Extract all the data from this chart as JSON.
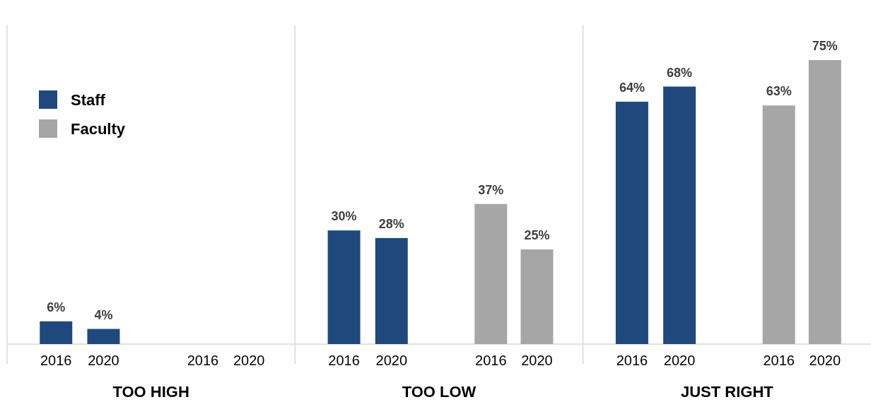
{
  "chart_data": {
    "type": "bar",
    "categories": [
      "2016",
      "2020",
      "2016",
      "2020",
      "2016",
      "2020",
      "2016",
      "2020",
      "2016",
      "2020",
      "2016",
      "2020"
    ],
    "series": [
      {
        "name": "Staff",
        "color": "#1f497d",
        "values": [
          6,
          4,
          null,
          null,
          30,
          28,
          null,
          null,
          64,
          68,
          null,
          null
        ],
        "value_labels": [
          "6%",
          "4%",
          null,
          null,
          "30%",
          "28%",
          null,
          null,
          "64%",
          "68%",
          null,
          null
        ]
      },
      {
        "name": "Faculty",
        "color": "#a6a6a6",
        "values": [
          null,
          null,
          null,
          null,
          null,
          null,
          37,
          25,
          null,
          null,
          63,
          75
        ],
        "value_labels": [
          null,
          null,
          null,
          null,
          null,
          null,
          "37%",
          "25%",
          null,
          null,
          "63%",
          "75%"
        ]
      }
    ],
    "annotations": [
      "TOO HIGH",
      "TOO LOW",
      "JUST RIGHT"
    ],
    "legend": "top left"
  }
}
